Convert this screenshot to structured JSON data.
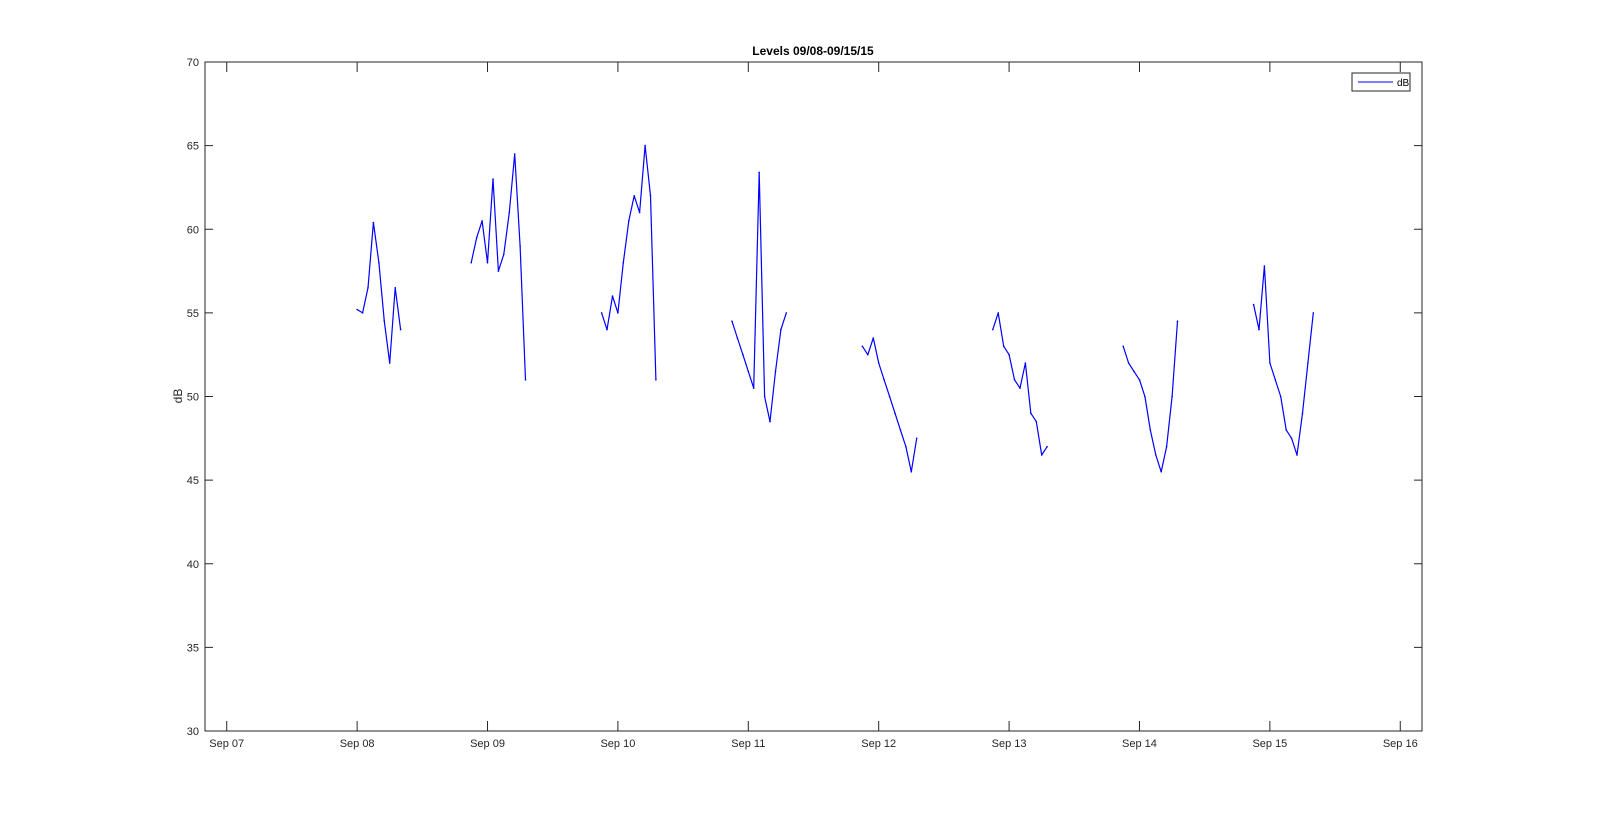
{
  "chart_data": {
    "type": "line",
    "title": "Levels 09/08-09/15/15",
    "xlabel": "",
    "ylabel": "dB",
    "x_unit": "days",
    "xlim": [
      "Sep 06 20:00",
      "Sep 16 04:00"
    ],
    "ylim": [
      30,
      70
    ],
    "x_ticks": [
      "Sep 07",
      "Sep 08",
      "Sep 09",
      "Sep 10",
      "Sep 11",
      "Sep 12",
      "Sep 13",
      "Sep 14",
      "Sep 15",
      "Sep 16"
    ],
    "y_ticks": [
      30,
      35,
      40,
      45,
      50,
      55,
      60,
      65,
      70
    ],
    "grid": false,
    "legend": {
      "position": "top-right",
      "entries": [
        "dB"
      ]
    },
    "series": [
      {
        "name": "dB",
        "color": "#0000ff",
        "segments": [
          {
            "x": [
              "Sep 08 00:00",
              "Sep 08 01:00",
              "Sep 08 02:00",
              "Sep 08 03:00",
              "Sep 08 04:00",
              "Sep 08 05:00",
              "Sep 08 06:00",
              "Sep 08 07:00",
              "Sep 08 08:00"
            ],
            "y": [
              55.2,
              55.0,
              56.5,
              60.4,
              58.0,
              54.5,
              52.0,
              56.5,
              54.0
            ]
          },
          {
            "x": [
              "Sep 08 21:00",
              "Sep 08 22:00",
              "Sep 08 23:00",
              "Sep 09 00:00",
              "Sep 09 01:00",
              "Sep 09 02:00",
              "Sep 09 03:00",
              "Sep 09 04:00",
              "Sep 09 05:00",
              "Sep 09 06:00",
              "Sep 09 07:00"
            ],
            "y": [
              58.0,
              59.5,
              60.5,
              58.0,
              63.0,
              57.5,
              58.5,
              61.0,
              64.5,
              59.0,
              51.0
            ]
          },
          {
            "x": [
              "Sep 09 21:00",
              "Sep 09 22:00",
              "Sep 09 23:00",
              "Sep 10 00:00",
              "Sep 10 01:00",
              "Sep 10 02:00",
              "Sep 10 03:00",
              "Sep 10 04:00",
              "Sep 10 05:00",
              "Sep 10 06:00",
              "Sep 10 07:00"
            ],
            "y": [
              55.0,
              54.0,
              56.0,
              55.0,
              58.0,
              60.5,
              62.0,
              61.0,
              65.0,
              62.0,
              51.0
            ]
          },
          {
            "x": [
              "Sep 10 21:00",
              "Sep 10 22:00",
              "Sep 10 23:00",
              "Sep 11 00:00",
              "Sep 11 01:00",
              "Sep 11 02:00",
              "Sep 11 03:00",
              "Sep 11 04:00",
              "Sep 11 05:00",
              "Sep 11 06:00",
              "Sep 11 07:00"
            ],
            "y": [
              54.5,
              53.5,
              52.5,
              51.5,
              50.5,
              63.4,
              50.0,
              48.5,
              51.5,
              54.0,
              55.0
            ]
          },
          {
            "x": [
              "Sep 11 21:00",
              "Sep 11 22:00",
              "Sep 11 23:00",
              "Sep 12 00:00",
              "Sep 12 01:00",
              "Sep 12 02:00",
              "Sep 12 03:00",
              "Sep 12 04:00",
              "Sep 12 05:00",
              "Sep 12 06:00",
              "Sep 12 07:00"
            ],
            "y": [
              53.0,
              52.5,
              53.5,
              52.0,
              51.0,
              50.0,
              49.0,
              48.0,
              47.0,
              45.5,
              47.5
            ]
          },
          {
            "x": [
              "Sep 12 21:00",
              "Sep 12 22:00",
              "Sep 12 23:00",
              "Sep 13 00:00",
              "Sep 13 01:00",
              "Sep 13 02:00",
              "Sep 13 03:00",
              "Sep 13 04:00",
              "Sep 13 05:00",
              "Sep 13 06:00",
              "Sep 13 07:00"
            ],
            "y": [
              54.0,
              55.0,
              53.0,
              52.5,
              51.0,
              50.5,
              52.0,
              49.0,
              48.5,
              46.5,
              47.0
            ]
          },
          {
            "x": [
              "Sep 13 21:00",
              "Sep 13 22:00",
              "Sep 13 23:00",
              "Sep 14 00:00",
              "Sep 14 01:00",
              "Sep 14 02:00",
              "Sep 14 03:00",
              "Sep 14 04:00",
              "Sep 14 05:00",
              "Sep 14 06:00",
              "Sep 14 07:00"
            ],
            "y": [
              53.0,
              52.0,
              51.5,
              51.0,
              50.0,
              48.0,
              46.5,
              45.5,
              47.0,
              50.0,
              54.5
            ]
          },
          {
            "x": [
              "Sep 14 21:00",
              "Sep 14 22:00",
              "Sep 14 23:00",
              "Sep 15 00:00",
              "Sep 15 01:00",
              "Sep 15 02:00",
              "Sep 15 03:00",
              "Sep 15 04:00",
              "Sep 15 05:00",
              "Sep 15 06:00",
              "Sep 15 07:00",
              "Sep 15 08:00"
            ],
            "y": [
              55.5,
              54.0,
              57.8,
              52.0,
              51.0,
              50.0,
              48.0,
              47.5,
              46.5,
              49.0,
              52.0,
              55.0
            ]
          }
        ]
      }
    ]
  }
}
